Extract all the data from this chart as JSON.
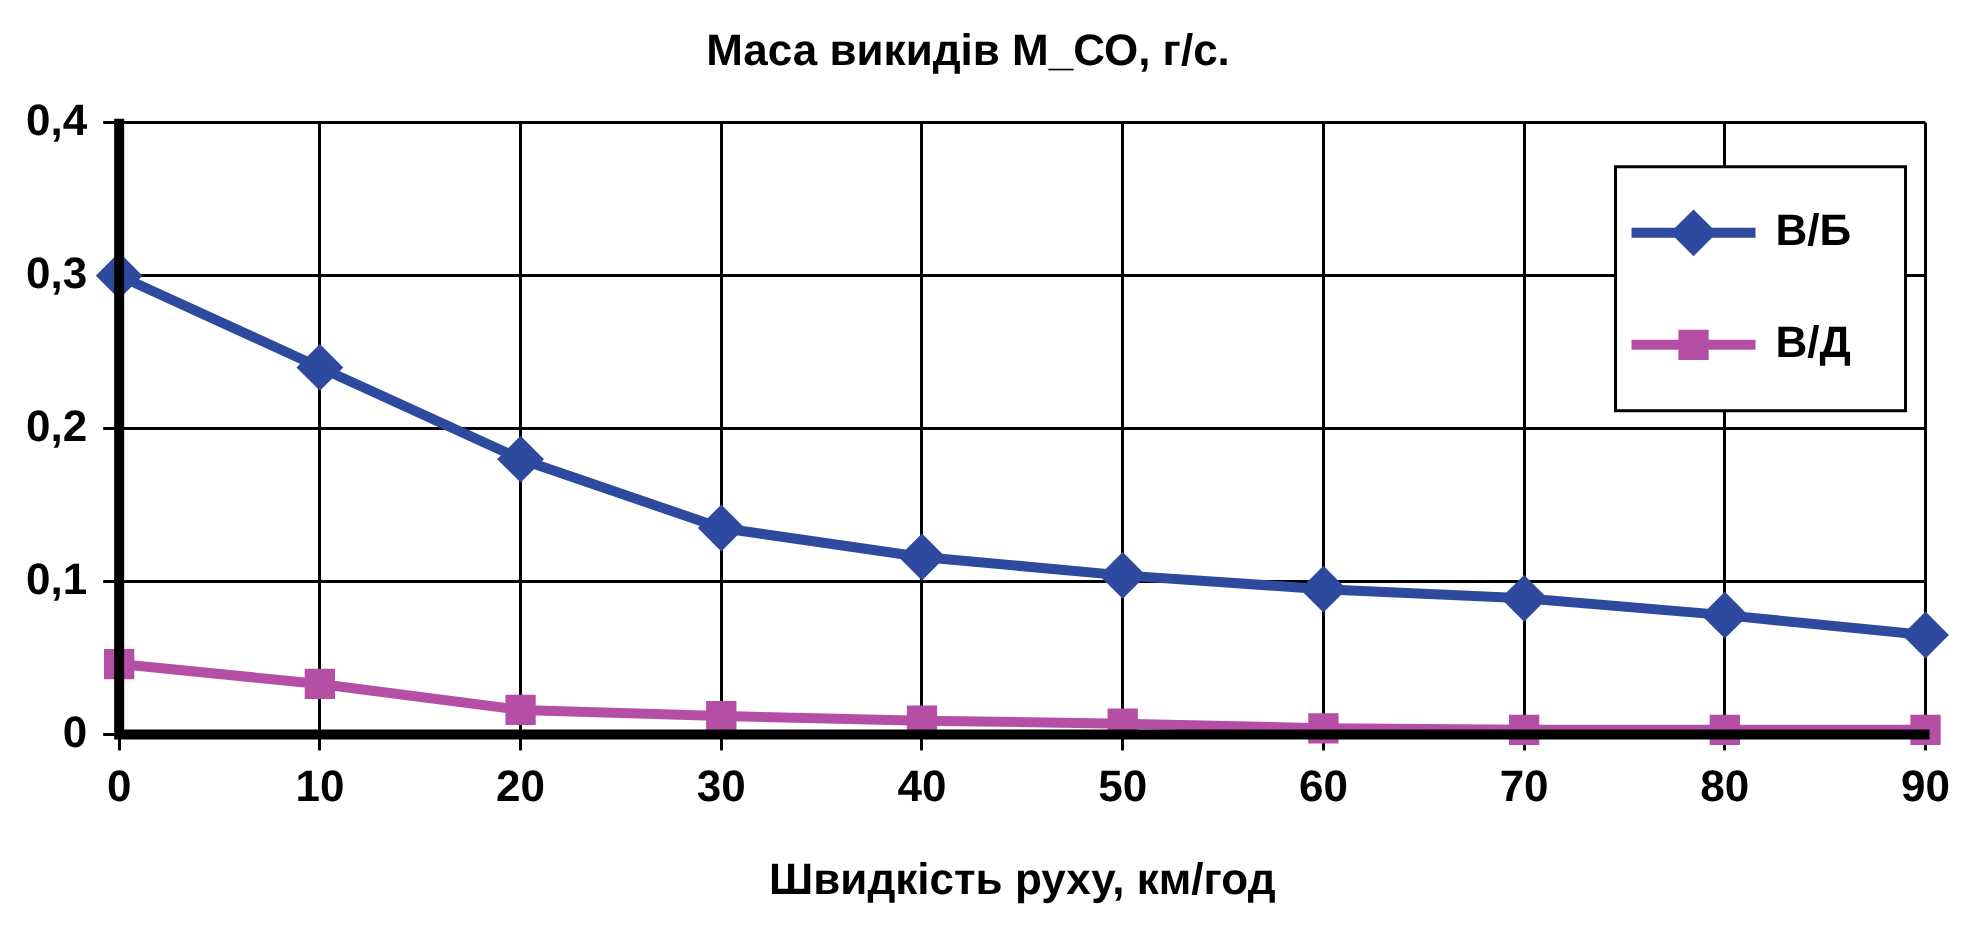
{
  "chart_data": {
    "type": "line",
    "title": "Маса викидів М_СО, г/с.",
    "xlabel": "Швидкість руху, км/год",
    "categories": [
      "0",
      "10",
      "20",
      "30",
      "40",
      "50",
      "60",
      "70",
      "80",
      "90"
    ],
    "series": [
      {
        "name": "В/Б",
        "color": "#2e4a9e",
        "marker": "diamond",
        "values": [
          0.3,
          0.24,
          0.18,
          0.135,
          0.116,
          0.104,
          0.095,
          0.089,
          0.078,
          0.065
        ]
      },
      {
        "name": "В/Д",
        "color": "#b54fa6",
        "marker": "square",
        "values": [
          0.046,
          0.033,
          0.016,
          0.012,
          0.009,
          0.007,
          0.004,
          0.003,
          0.003,
          0.003
        ]
      }
    ],
    "ylim": [
      0,
      0.4
    ],
    "yticks": [
      {
        "value": 0,
        "label": "0"
      },
      {
        "value": 0.1,
        "label": "0,1"
      },
      {
        "value": 0.2,
        "label": "0,2"
      },
      {
        "value": 0.3,
        "label": "0,3"
      },
      {
        "value": 0.4,
        "label": "0,4"
      }
    ],
    "grid": true,
    "legend": "top right",
    "line_style": "solid"
  }
}
